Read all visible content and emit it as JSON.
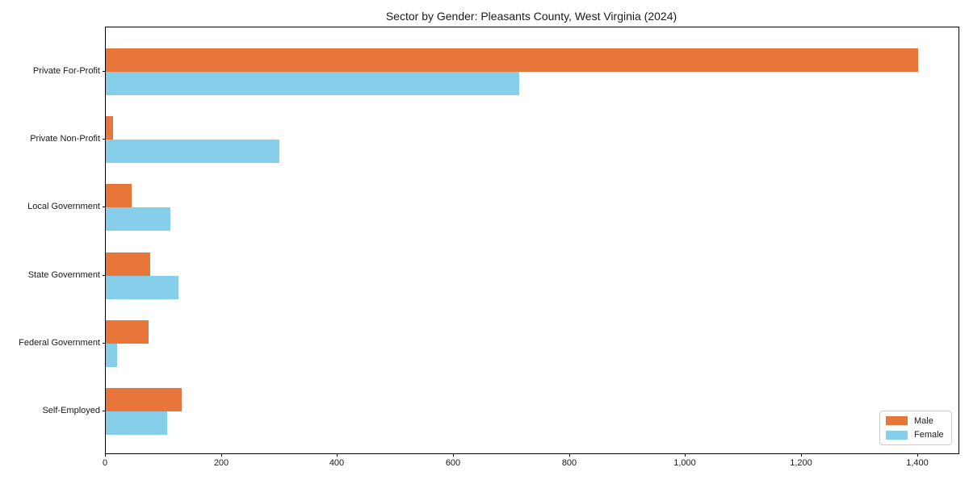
{
  "title": "Sector by Gender: Pleasants County, West Virginia (2024)",
  "chart_data": {
    "type": "bar",
    "orientation": "horizontal",
    "title": "Sector by Gender: Pleasants County, West Virginia (2024)",
    "categories": [
      "Private For-Profit",
      "Private Non-Profit",
      "Local Government",
      "State Government",
      "Federal Government",
      "Self-Employed"
    ],
    "series": [
      {
        "name": "Male",
        "color": "#E8763A",
        "values": [
          1400,
          13,
          45,
          76,
          74,
          131
        ]
      },
      {
        "name": "Female",
        "color": "#87CEEB",
        "values": [
          713,
          299,
          111,
          125,
          19,
          106
        ]
      }
    ],
    "xlabel": "",
    "ylabel": "",
    "xlim": [
      0,
      1470
    ],
    "x_ticks": [
      0,
      200,
      400,
      600,
      800,
      1000,
      1200,
      1400
    ],
    "x_tick_labels": [
      "0",
      "200",
      "400",
      "600",
      "800",
      "1,000",
      "1,200",
      "1,400"
    ],
    "grid": false,
    "legend_position": "lower right",
    "axis_color": "#000000",
    "text_color": "#1a1a1a"
  }
}
